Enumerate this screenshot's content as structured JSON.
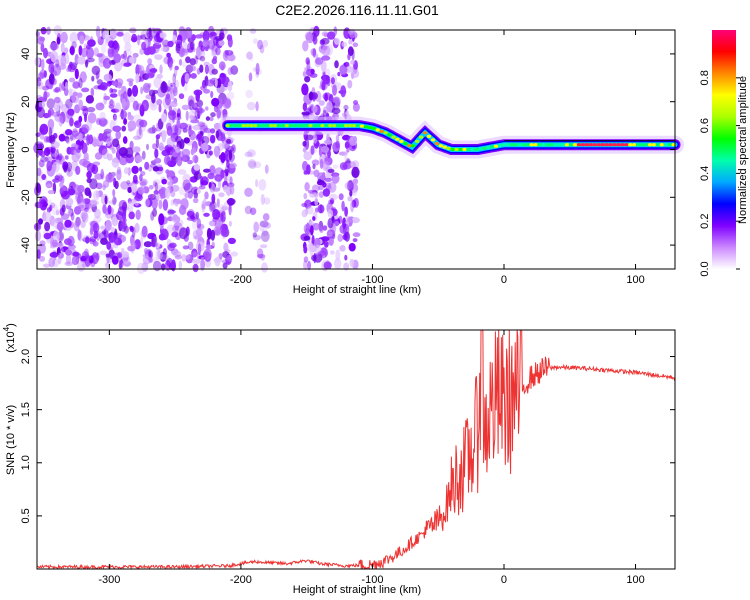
{
  "title": "C2E2.2026.116.11.11.G01",
  "chart_data": [
    {
      "type": "heatmap",
      "xlabel": "Height of straight line (km)",
      "ylabel": "Frequency (Hz)",
      "xlim": [
        -355,
        130
      ],
      "ylim": [
        -50,
        50
      ],
      "xticks": [
        -300,
        -200,
        -100,
        0,
        100
      ],
      "yticks": [
        -40,
        -20,
        0,
        20,
        40
      ],
      "xticklabels": [
        "-300",
        "-200",
        "-100",
        "0",
        "100"
      ],
      "yticklabels": [
        "-40",
        "-20",
        "0",
        "20",
        "40"
      ],
      "noise_regions": [
        {
          "x": [
            -355,
            -205
          ],
          "y": [
            -50,
            50
          ],
          "density": "high"
        },
        {
          "x": [
            -195,
            -180
          ],
          "y": [
            -50,
            50
          ],
          "density": "low"
        },
        {
          "x": [
            -152,
            -112
          ],
          "y": [
            -50,
            50
          ],
          "density": "high"
        }
      ],
      "ridge": {
        "x": [
          -210,
          -180,
          -150,
          -125,
          -110,
          -100,
          -90,
          -80,
          -70,
          -60,
          -50,
          -40,
          -30,
          -20,
          -10,
          0,
          20,
          50,
          80,
          100,
          130
        ],
        "freq": [
          10,
          10,
          10,
          10,
          10,
          9,
          7,
          4,
          1,
          7,
          2,
          0,
          0,
          0,
          1,
          2,
          2,
          2,
          2,
          2,
          2
        ]
      },
      "colorbar": {
        "label": "Normalized spectral amplitude",
        "range": [
          0,
          1
        ],
        "ticks": [
          0.0,
          0.2,
          0.4,
          0.6,
          0.8
        ],
        "ticklabels": [
          "0.0",
          "0.2",
          "0.4",
          "0.6",
          "0.8"
        ],
        "colormap": [
          "#ffffff",
          "#cc88ff",
          "#7f00ff",
          "#0000ff",
          "#00aaff",
          "#00ffaa",
          "#00ff00",
          "#aaff00",
          "#ffff00",
          "#ff8800",
          "#ff0000",
          "#ff0077"
        ]
      }
    },
    {
      "type": "line",
      "xlabel": "Height of straight line (km)",
      "ylabel": "SNR (10 * v/v)",
      "yscale_label": "(x10",
      "yscale_exp": "4",
      "yscale_close": ")",
      "xlim": [
        -355,
        130
      ],
      "ylim": [
        0,
        2.25
      ],
      "xticks": [
        -300,
        -200,
        -100,
        0,
        100
      ],
      "yticks": [
        0.5,
        1.0,
        1.5,
        2.0
      ],
      "xticklabels": [
        "-300",
        "-200",
        "-100",
        "0",
        "100"
      ],
      "yticklabels": [
        "0.5",
        "1.0",
        "1.5",
        "2.0"
      ],
      "series": [
        {
          "name": "SNR",
          "color": "#ee3333",
          "x": [
            -355,
            -300,
            -250,
            -210,
            -190,
            -180,
            -165,
            -150,
            -140,
            -120,
            -100,
            -90,
            -80,
            -70,
            -60,
            -50,
            -45,
            -40,
            -35,
            -30,
            -25,
            -20,
            -17,
            -15,
            -10,
            -5,
            0,
            5,
            10,
            20,
            30,
            40,
            60,
            80,
            100,
            130
          ],
          "y": [
            0.02,
            0.02,
            0.02,
            0.03,
            0.07,
            0.06,
            0.05,
            0.08,
            0.05,
            0.03,
            0.04,
            0.08,
            0.15,
            0.25,
            0.35,
            0.45,
            0.55,
            0.75,
            0.9,
            0.95,
            1.1,
            1.3,
            2.25,
            1.3,
            1.5,
            1.6,
            1.55,
            1.6,
            1.65,
            1.8,
            1.88,
            1.9,
            1.89,
            1.87,
            1.85,
            1.8
          ]
        }
      ]
    }
  ]
}
